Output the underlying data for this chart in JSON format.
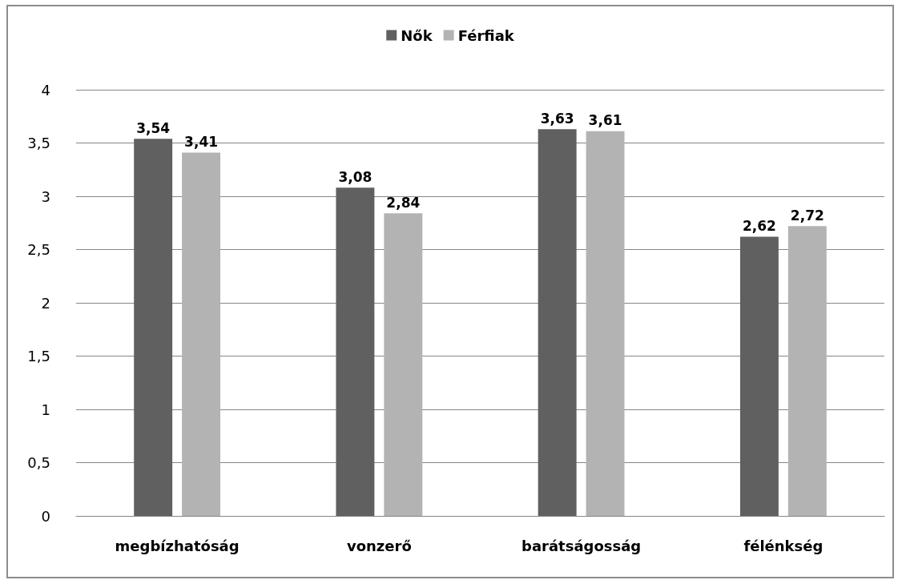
{
  "chart_data": {
    "type": "bar",
    "categories": [
      "megbízhatóság",
      "vonzerő",
      "barátságosság",
      "félénkség"
    ],
    "series": [
      {
        "name": "Nők",
        "color": "#606060",
        "values": [
          3.54,
          3.08,
          3.63,
          2.62
        ],
        "value_labels": [
          "3,54",
          "3,08",
          "3,63",
          "2,62"
        ]
      },
      {
        "name": "Férfiak",
        "color": "#b3b3b3",
        "values": [
          3.41,
          2.84,
          3.61,
          2.72
        ],
        "value_labels": [
          "3,41",
          "2,84",
          "3,61",
          "2,72"
        ]
      }
    ],
    "ylim": [
      0,
      4
    ],
    "yticks": [
      0,
      {
        "value": 0.5,
        "label": "0,5"
      },
      1,
      {
        "value": 1.5,
        "label": "1,5"
      },
      2,
      {
        "value": 2.5,
        "label": "2,5"
      },
      3,
      {
        "value": 3.5,
        "label": "3,5"
      },
      4
    ],
    "grid": "y",
    "legend": "top"
  }
}
